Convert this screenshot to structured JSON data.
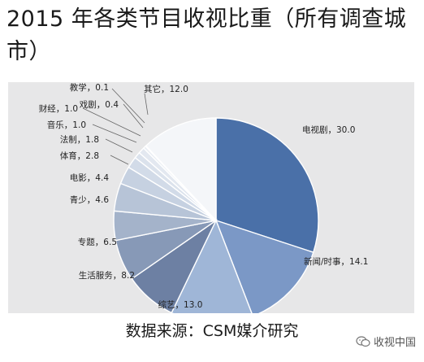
{
  "title": "2015 年各类节目收视比重（所有调查城市）",
  "source": "数据来源：CSM媒介研究",
  "watermark": {
    "text": "收视中国",
    "icon": "wechat-icon"
  },
  "chart_data": {
    "type": "pie",
    "categories": [
      "电视剧",
      "新闻/时事",
      "综艺",
      "生活服务",
      "专题",
      "青少",
      "电影",
      "体育",
      "法制",
      "音乐",
      "财经",
      "戏剧",
      "教学",
      "其它"
    ],
    "values": [
      30.0,
      14.1,
      13.0,
      8.2,
      6.5,
      4.6,
      4.4,
      2.8,
      1.8,
      1.0,
      1.0,
      0.4,
      0.1,
      12.0
    ],
    "labels": [
      "电视剧，30.0",
      "新闻/时事，14.1",
      "综艺，13.0",
      "生活服务，8.2",
      "专题，6.5",
      "青少，4.6",
      "电影，4.4",
      "体育，2.8",
      "法制，1.8",
      "音乐，1.0",
      "财经，1.0",
      "戏剧，0.4",
      "教学，0.1",
      "其它，12.0"
    ],
    "colors": [
      "#4a70a8",
      "#7b98c6",
      "#9fb6d7",
      "#6d80a3",
      "#8799b7",
      "#a4b3ca",
      "#b7c4d7",
      "#c6d1e1",
      "#d2dbe8",
      "#dbe2ec",
      "#e3e8f0",
      "#e9edf3",
      "#eef1f6",
      "#f4f6f9"
    ],
    "start_angle_deg": 0,
    "direction": "clockwise"
  }
}
